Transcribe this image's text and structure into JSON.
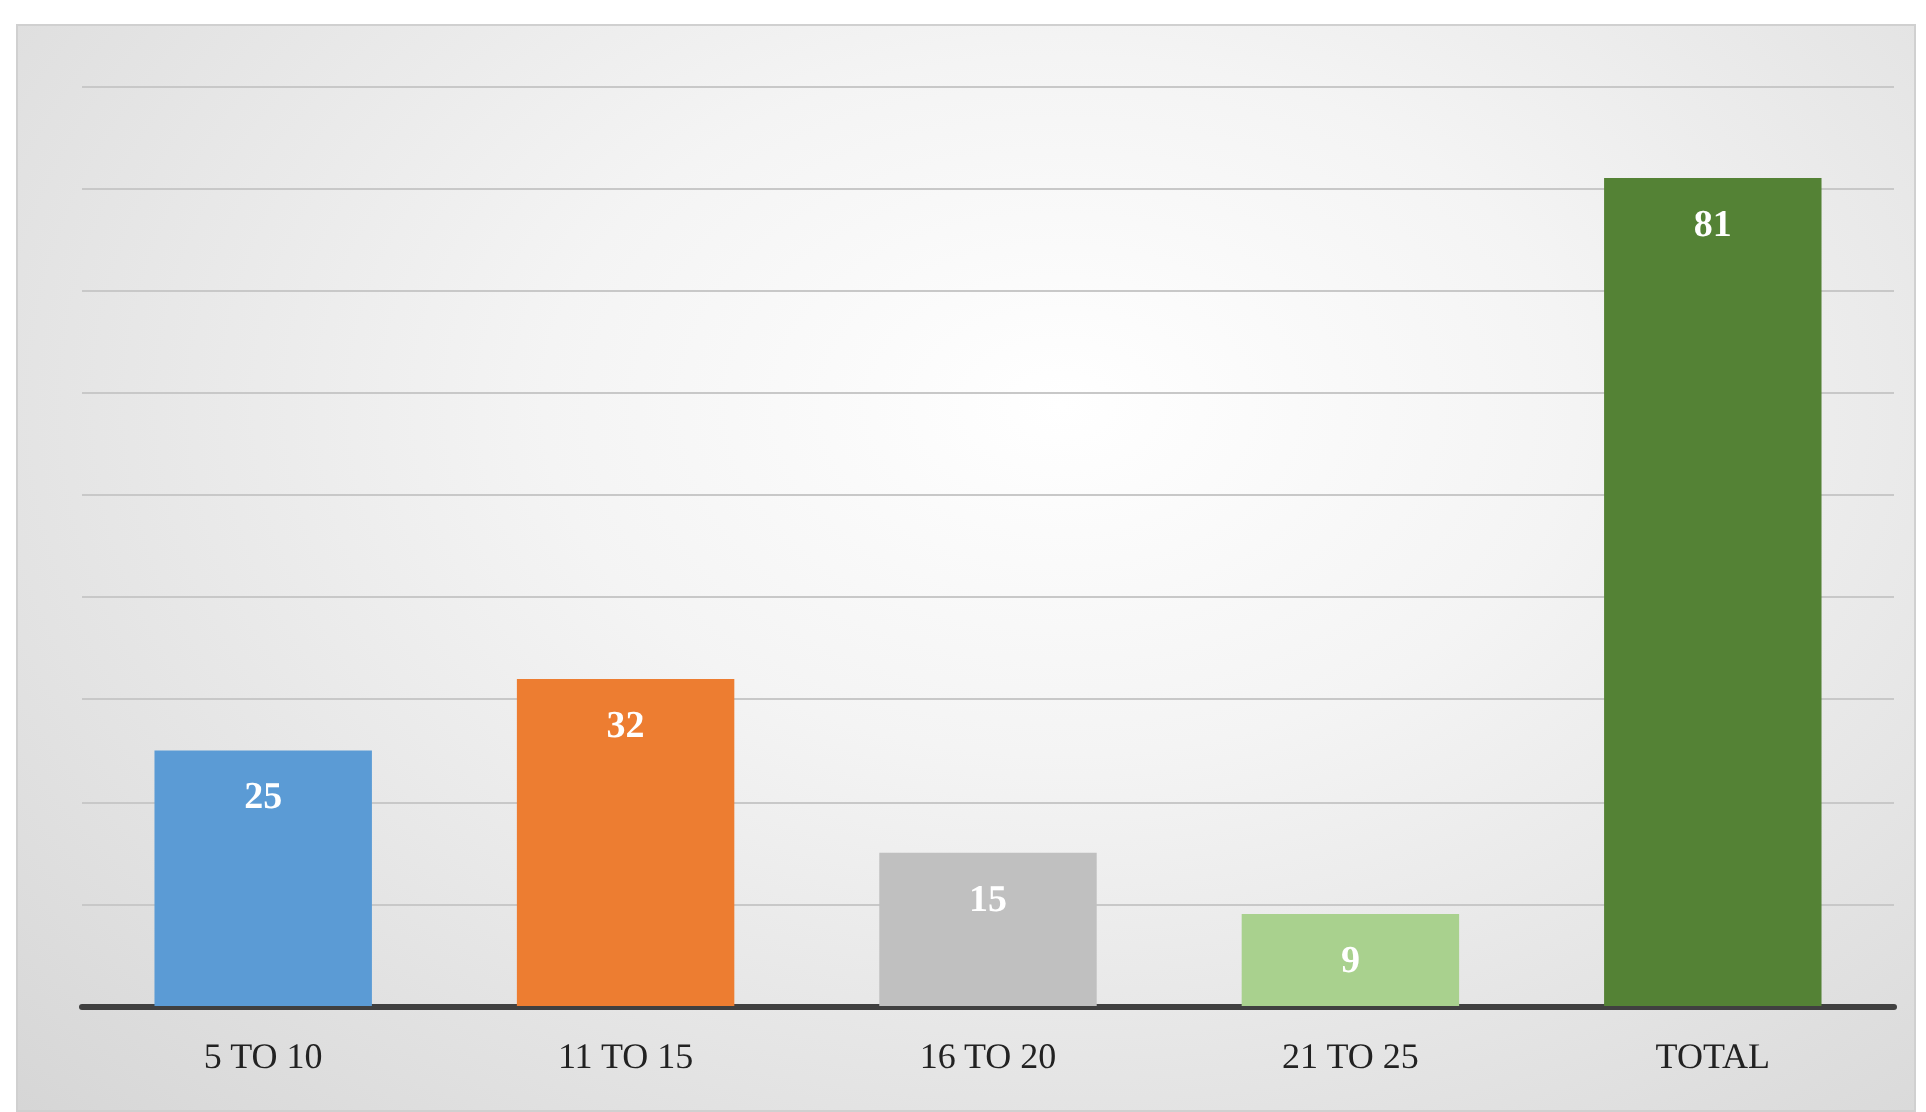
{
  "chart_data": {
    "type": "bar",
    "categories": [
      "5 TO 10",
      "11 TO 15",
      "16 TO 20",
      "21 TO 25",
      "TOTAL"
    ],
    "values": [
      25,
      32,
      15,
      9,
      81
    ],
    "colors": [
      "#5b9bd5",
      "#ed7d31",
      "#c0c0c0",
      "#a9d18e",
      "#548235"
    ],
    "ylim": [
      0,
      90
    ],
    "yticks": [
      {
        "value": 0,
        "label": null
      },
      {
        "value": 10,
        "label": null
      },
      {
        "value": 20,
        "label": null
      },
      {
        "value": 30,
        "label": null
      },
      {
        "value": 40,
        "label": null
      },
      {
        "value": 50,
        "label": null
      },
      {
        "value": 60,
        "label": null
      },
      {
        "value": 70,
        "label": null
      },
      {
        "value": 80,
        "label": null
      },
      {
        "value": 90,
        "label": null
      }
    ],
    "tick_labels": "x",
    "grid": "y",
    "data_labels": true
  }
}
